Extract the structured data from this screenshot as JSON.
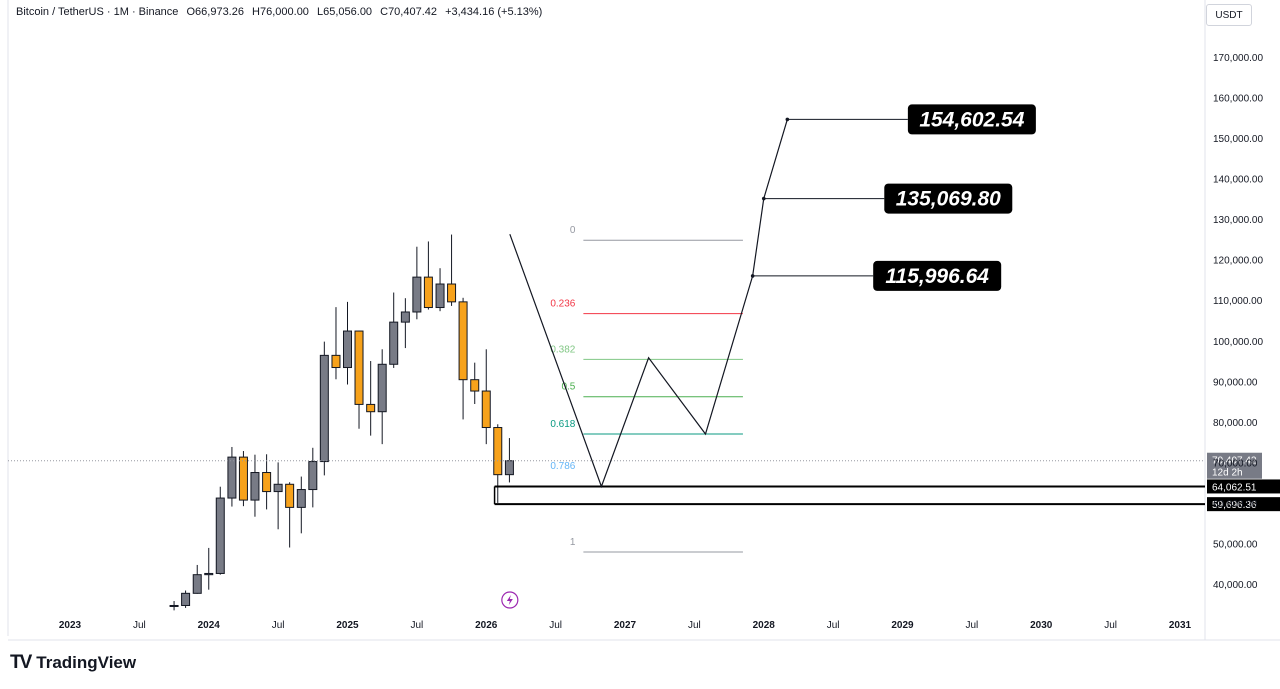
{
  "legend": {
    "symbol": "Bitcoin / TetherUS · 1M · Binance",
    "open": "O66,973.26",
    "high": "H76,000.00",
    "low": "L65,056.00",
    "close": "C70,407.42",
    "change": "+3,434.16 (+5.13%)"
  },
  "price_axis": {
    "unit": "USDT"
  },
  "branding": {
    "logo_text": "TradingView",
    "logo_icon": "tradingview-logo-icon"
  },
  "colors": {
    "up": "#787b86",
    "down": "#f7a21b",
    "fib_0": "#9598a1",
    "fib_0236": "#f23645",
    "fib_0382": "#81c784",
    "fib_05": "#4caf50",
    "fib_0618": "#089981",
    "fib_0786": "#64b5f6",
    "fib_1": "#9598a1",
    "label_bg": "#000000",
    "label_text": "#ffffff"
  },
  "chart_data": {
    "type": "candlestick",
    "title": "",
    "x_tick_labels": [
      "2023",
      "Jul",
      "2024",
      "Jul",
      "2025",
      "Jul",
      "2026",
      "Jul",
      "2027",
      "Jul",
      "2028",
      "Jul",
      "2029",
      "Jul",
      "2030",
      "Jul",
      "2031"
    ],
    "y_tick_labels": [
      "170,000.00",
      "160,000.00",
      "150,000.00",
      "140,000.00",
      "130,000.00",
      "120,000.00",
      "110,000.00",
      "100,000.00",
      "90,000.00",
      "80,000.00",
      "70,000.00",
      "60,000.00",
      "50,000.00",
      "40,000.00"
    ],
    "y_ticks": [
      170000,
      160000,
      150000,
      140000,
      130000,
      120000,
      110000,
      100000,
      90000,
      80000,
      70000,
      60000,
      50000,
      40000
    ],
    "ylim": [
      33000,
      180000
    ],
    "xlim": [
      2022.6,
      2031.2
    ],
    "candles": [
      {
        "t": 2023.75,
        "o": 34500,
        "h": 35800,
        "l": 33500,
        "c": 34700
      },
      {
        "t": 2023.833,
        "o": 34700,
        "h": 38400,
        "l": 34100,
        "c": 37700
      },
      {
        "t": 2023.917,
        "o": 37700,
        "h": 44700,
        "l": 37600,
        "c": 42300
      },
      {
        "t": 2024.0,
        "o": 42300,
        "h": 48900,
        "l": 38600,
        "c": 42600
      },
      {
        "t": 2024.083,
        "o": 42600,
        "h": 64000,
        "l": 42300,
        "c": 61200
      },
      {
        "t": 2024.167,
        "o": 61200,
        "h": 73800,
        "l": 59100,
        "c": 71300
      },
      {
        "t": 2024.25,
        "o": 71300,
        "h": 72800,
        "l": 59200,
        "c": 60700
      },
      {
        "t": 2024.333,
        "o": 60700,
        "h": 71900,
        "l": 56600,
        "c": 67500
      },
      {
        "t": 2024.417,
        "o": 67500,
        "h": 72000,
        "l": 58400,
        "c": 62800
      },
      {
        "t": 2024.5,
        "o": 62800,
        "h": 70000,
        "l": 53500,
        "c": 64600
      },
      {
        "t": 2024.583,
        "o": 64600,
        "h": 65100,
        "l": 49000,
        "c": 58900
      },
      {
        "t": 2024.667,
        "o": 58900,
        "h": 66500,
        "l": 52500,
        "c": 63300
      },
      {
        "t": 2024.75,
        "o": 63300,
        "h": 73600,
        "l": 58900,
        "c": 70200
      },
      {
        "t": 2024.833,
        "o": 70200,
        "h": 99800,
        "l": 66800,
        "c": 96400
      },
      {
        "t": 2024.917,
        "o": 96400,
        "h": 108300,
        "l": 90500,
        "c": 93400
      },
      {
        "t": 2025.0,
        "o": 93400,
        "h": 109600,
        "l": 89200,
        "c": 102400
      },
      {
        "t": 2025.083,
        "o": 102400,
        "h": 102500,
        "l": 78300,
        "c": 84300
      },
      {
        "t": 2025.167,
        "o": 84300,
        "h": 95000,
        "l": 76600,
        "c": 82500
      },
      {
        "t": 2025.25,
        "o": 82500,
        "h": 97900,
        "l": 74500,
        "c": 94200
      },
      {
        "t": 2025.333,
        "o": 94200,
        "h": 111900,
        "l": 93300,
        "c": 104600
      },
      {
        "t": 2025.417,
        "o": 104600,
        "h": 110500,
        "l": 98200,
        "c": 107100
      },
      {
        "t": 2025.5,
        "o": 107100,
        "h": 123200,
        "l": 105300,
        "c": 115700
      },
      {
        "t": 2025.583,
        "o": 115700,
        "h": 124500,
        "l": 107700,
        "c": 108200
      },
      {
        "t": 2025.667,
        "o": 108200,
        "h": 117900,
        "l": 107300,
        "c": 114000
      },
      {
        "t": 2025.75,
        "o": 114000,
        "h": 126200,
        "l": 108600,
        "c": 109600
      },
      {
        "t": 2025.833,
        "o": 109600,
        "h": 110600,
        "l": 80600,
        "c": 90400
      },
      {
        "t": 2025.917,
        "o": 90400,
        "h": 94600,
        "l": 84400,
        "c": 87600
      },
      {
        "t": 2026.0,
        "o": 87600,
        "h": 97900,
        "l": 74500,
        "c": 78600
      },
      {
        "t": 2026.083,
        "o": 78600,
        "h": 79400,
        "l": 60000,
        "c": 66970
      },
      {
        "t": 2026.167,
        "o": 66973.26,
        "h": 76000,
        "l": 65056,
        "c": 70407.42
      }
    ],
    "current_price": {
      "value": 70407.42,
      "label": "70,407.42",
      "countdown": "12d 2h"
    },
    "horizontal_levels": [
      {
        "value": 64062.51,
        "label": "64,062.51"
      },
      {
        "value": 59696.36,
        "label": "59,696.36"
      }
    ],
    "fibonacci": {
      "levels": [
        {
          "ratio": "0",
          "price": 124800,
          "color": "#9598a1"
        },
        {
          "ratio": "0.236",
          "price": 106700,
          "color": "#f23645"
        },
        {
          "ratio": "0.382",
          "price": 95400,
          "color": "#81c784"
        },
        {
          "ratio": "0.5",
          "price": 86200,
          "color": "#4caf50"
        },
        {
          "ratio": "0.618",
          "price": 77000,
          "color": "#089981"
        },
        {
          "ratio": "0.786",
          "price": null,
          "color": "#64b5f6"
        },
        {
          "ratio": "1",
          "price": 47900,
          "color": "#9598a1"
        }
      ],
      "x_start": 2026.7,
      "x_end": 2027.85
    },
    "projection_path": [
      {
        "t": 2026.17,
        "p": 126300
      },
      {
        "t": 2026.83,
        "p": 64062.51
      },
      {
        "t": 2027.17,
        "p": 95800
      },
      {
        "t": 2027.58,
        "p": 77000
      },
      {
        "t": 2027.92,
        "p": 115996.64
      },
      {
        "t": 2028.0,
        "p": 135069.8
      },
      {
        "t": 2028.17,
        "p": 154602.54
      }
    ],
    "targets": [
      {
        "value": 154602.54,
        "label": "154,602.54",
        "from_t": 2028.17,
        "label_t": 2029.5
      },
      {
        "value": 135069.8,
        "label": "135,069.80",
        "from_t": 2028.0,
        "label_t": 2029.33
      },
      {
        "value": 115996.64,
        "label": "115,996.64",
        "from_t": 2027.92,
        "label_t": 2029.25
      }
    ]
  }
}
